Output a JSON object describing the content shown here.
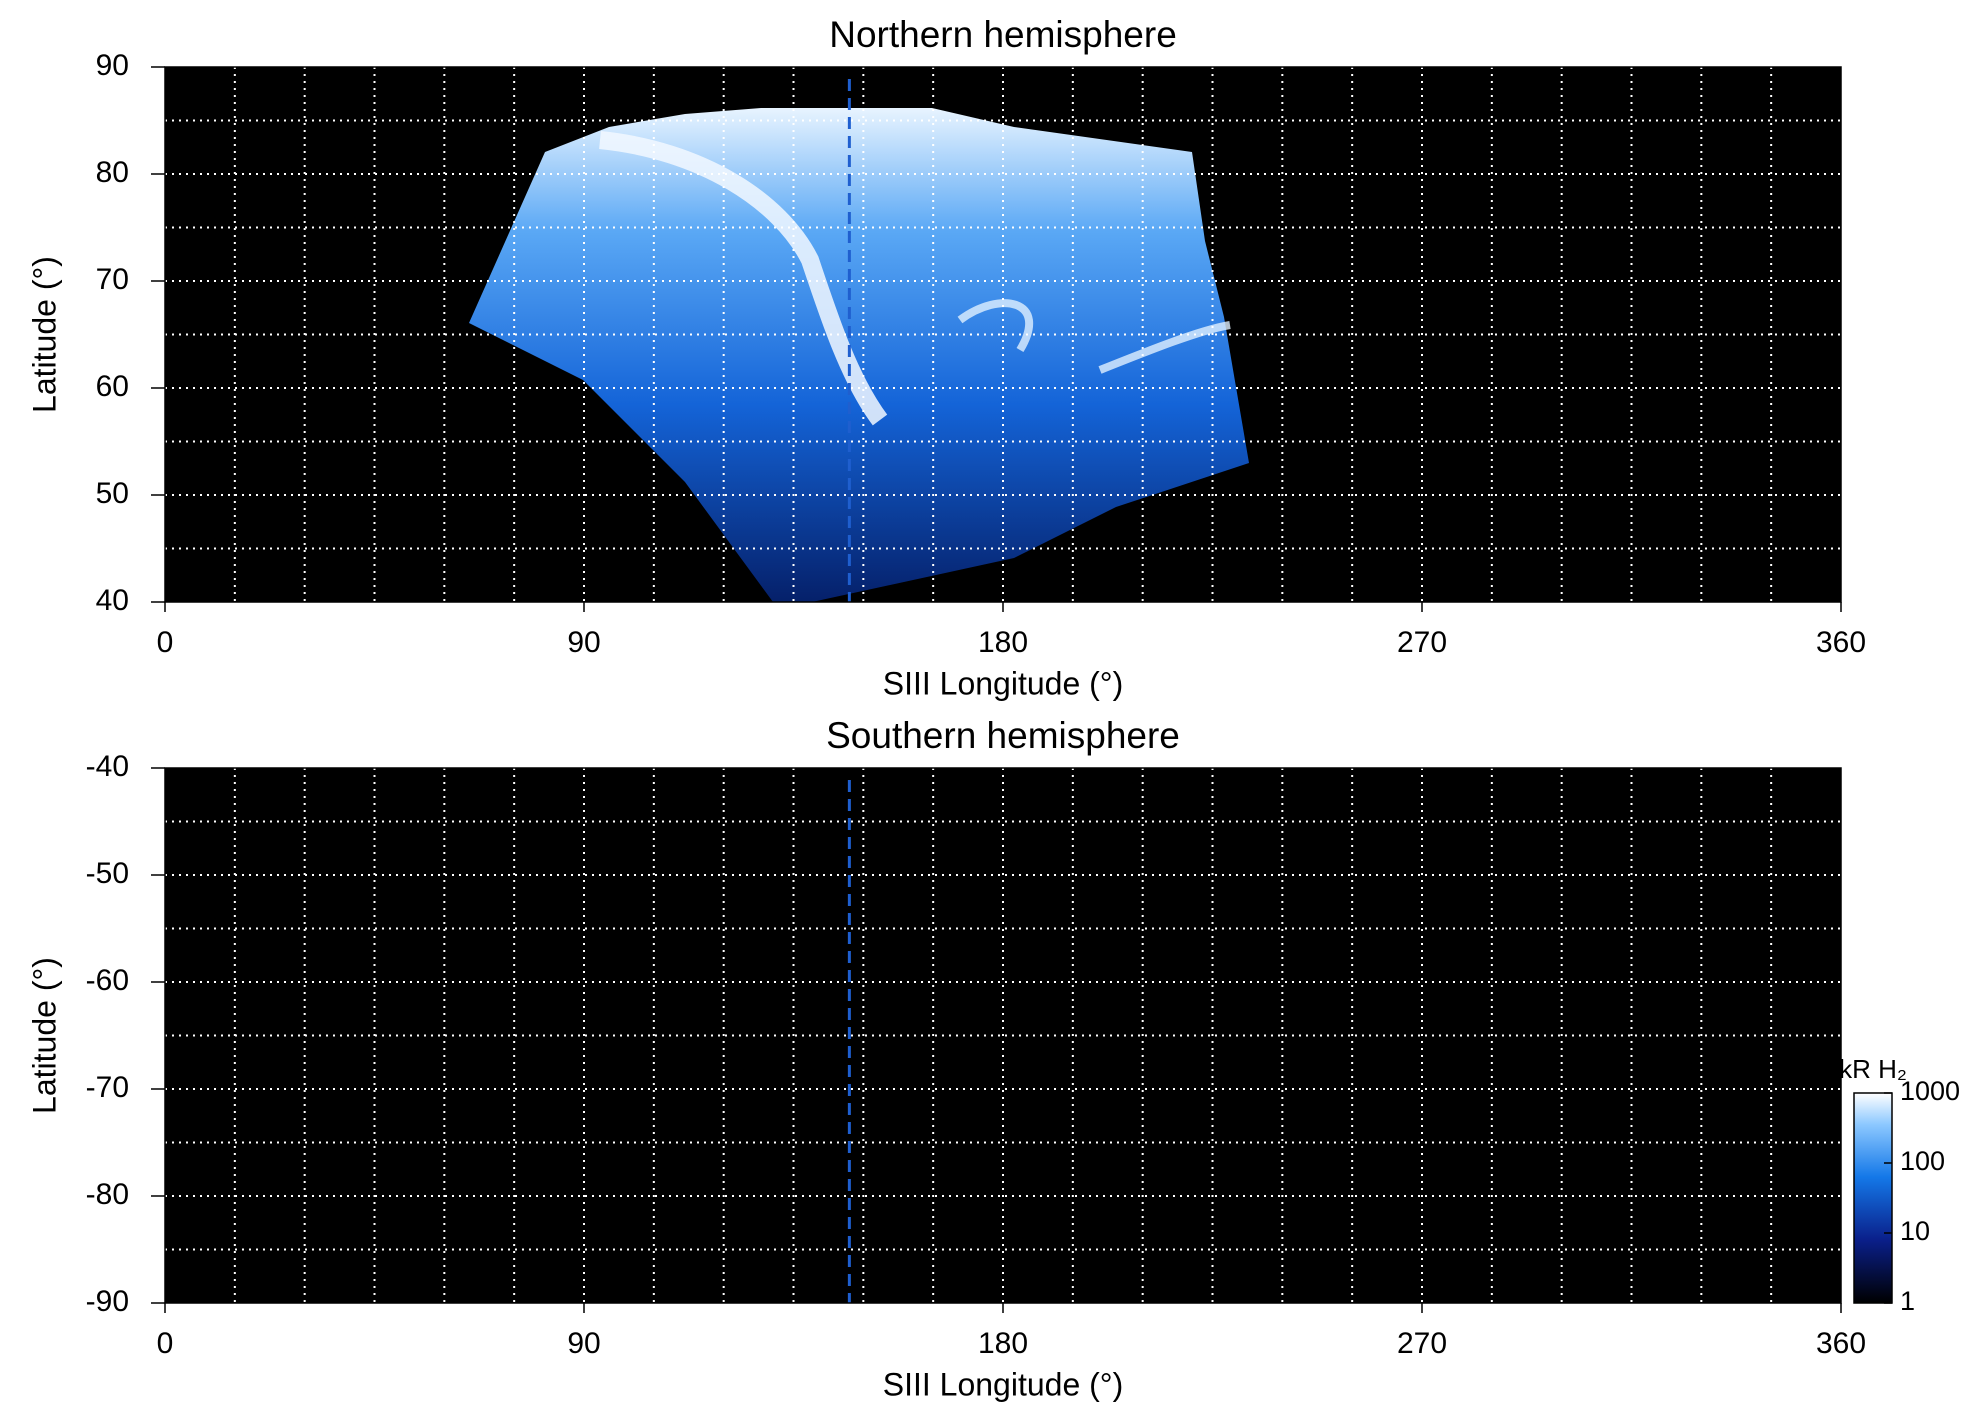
{
  "chart_data": [
    {
      "type": "heatmap",
      "title": "Northern hemisphere",
      "x_label": "SIII Longitude (°)",
      "y_label": "Latitude (°)",
      "xlim": [
        0,
        360
      ],
      "xticks": [
        0,
        90,
        180,
        270,
        360
      ],
      "ylim": [
        40,
        90
      ],
      "yticks": [
        40,
        50,
        60,
        70,
        80,
        90
      ],
      "xgrid": [
        15,
        30,
        45,
        60,
        75,
        90,
        105,
        120,
        135,
        150,
        165,
        180,
        195,
        210,
        225,
        240,
        255,
        270,
        285,
        300,
        315,
        330,
        345
      ],
      "ygrid": [
        45,
        50,
        55,
        60,
        65,
        70,
        75,
        80,
        85
      ],
      "vline": 147,
      "vline_color": "#1f5fcf",
      "background": "#000000"
    },
    {
      "type": "heatmap",
      "title": "Southern hemisphere",
      "x_label": "SIII Longitude (°)",
      "y_label": "Latitude (°)",
      "xlim": [
        0,
        360
      ],
      "xticks": [
        0,
        90,
        180,
        270,
        360
      ],
      "ylim": [
        -90,
        -40
      ],
      "yticks": [
        -90,
        -80,
        -70,
        -60,
        -50,
        -40
      ],
      "xgrid": [
        15,
        30,
        45,
        60,
        75,
        90,
        105,
        120,
        135,
        150,
        165,
        180,
        195,
        210,
        225,
        240,
        255,
        270,
        285,
        300,
        315,
        330,
        345
      ],
      "ygrid": [
        -85,
        -80,
        -75,
        -70,
        -65,
        -60,
        -55,
        -50,
        -45
      ],
      "vline": 147,
      "vline_color": "#1f5fcf",
      "background": "#000000",
      "colorbar": {
        "label": "kR H₂",
        "lim": [
          1,
          1000
        ],
        "ticks": [
          1,
          10,
          100,
          1000
        ],
        "log": true
      }
    }
  ]
}
